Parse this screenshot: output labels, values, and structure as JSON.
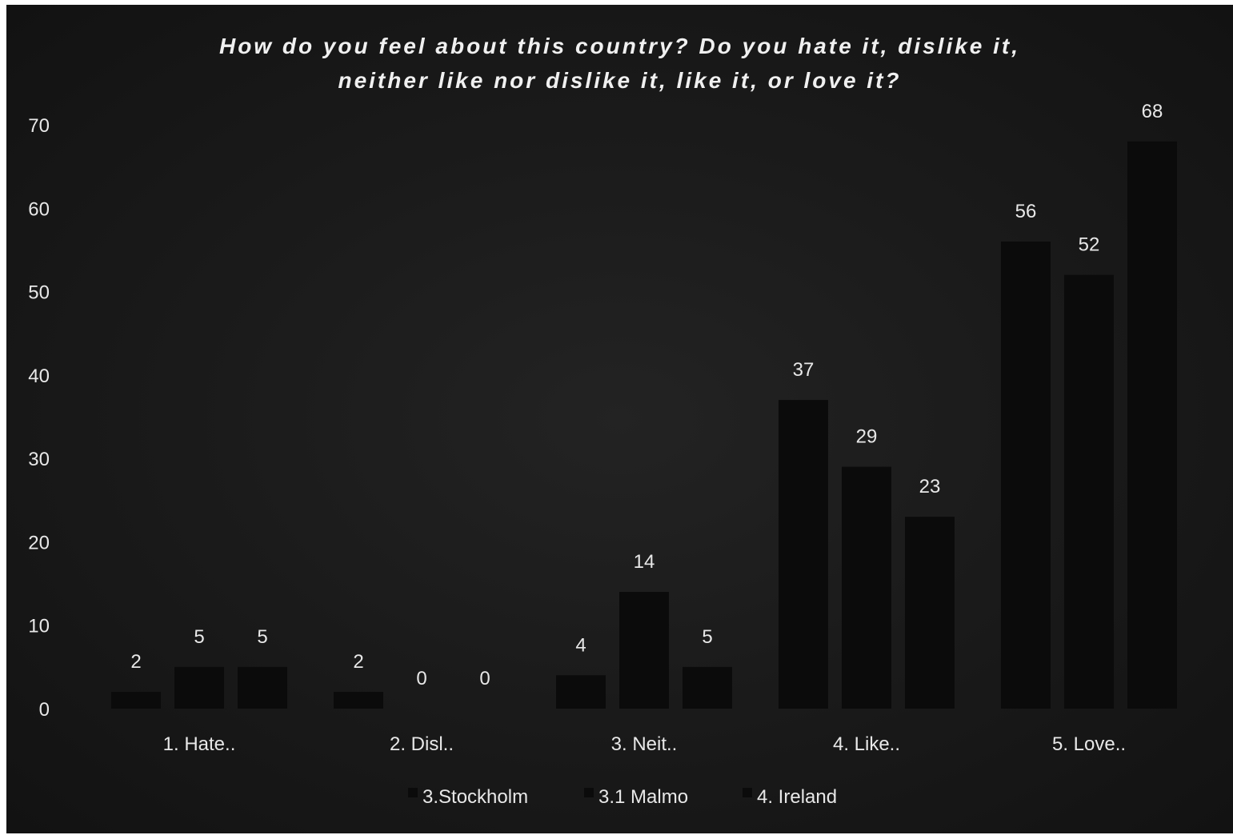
{
  "chart_data": {
    "type": "bar",
    "title_lines": [
      "How do you feel about this country? Do you hate it, dislike it,",
      "neither like nor dislike it, like it, or love it?"
    ],
    "categories": [
      "1. Hate..",
      "2. Disl..",
      "3. Neit..",
      "4. Like..",
      "5. Love.."
    ],
    "series": [
      {
        "name": "3.Stockholm",
        "values": [
          2,
          2,
          4,
          37,
          56
        ]
      },
      {
        "name": "3.1 Malmo",
        "values": [
          5,
          0,
          14,
          29,
          52
        ]
      },
      {
        "name": "4. Ireland",
        "values": [
          5,
          0,
          5,
          23,
          68
        ]
      }
    ],
    "ylim": [
      0,
      70
    ],
    "yticks": [
      0,
      10,
      20,
      30,
      40,
      50,
      60,
      70
    ],
    "grid": false,
    "legend_position": "bottom",
    "colors": {
      "background": "#1b1b1b",
      "bar": "#0b0b0b",
      "text": "#e8e8e8"
    }
  }
}
